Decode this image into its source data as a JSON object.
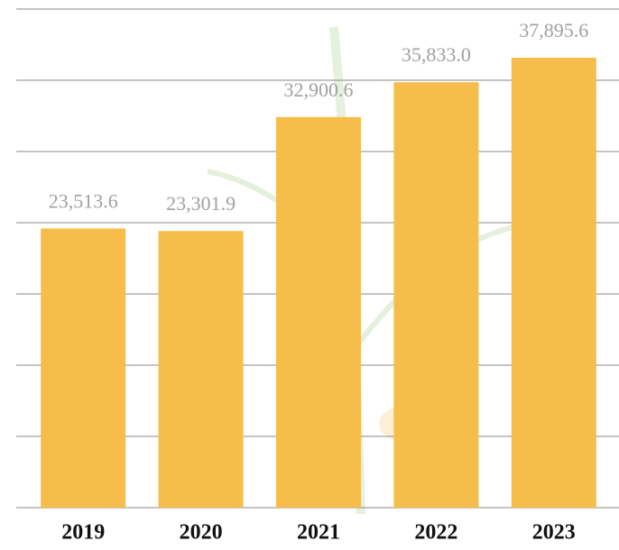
{
  "chart_data": {
    "type": "bar",
    "categories": [
      "2019",
      "2020",
      "2021",
      "2022",
      "2023"
    ],
    "values": [
      23513.6,
      23301.9,
      32900.6,
      35833.0,
      37895.6
    ],
    "value_labels": [
      "23,513.6",
      "23,301.9",
      "32,900.6",
      "35,833.0",
      "37,895.6"
    ],
    "color": "#f7bd4a",
    "ylim": [
      0,
      42000
    ],
    "yticks": [
      0,
      6000,
      12000,
      18000,
      24000,
      30000,
      36000,
      42000
    ],
    "grid": true
  }
}
